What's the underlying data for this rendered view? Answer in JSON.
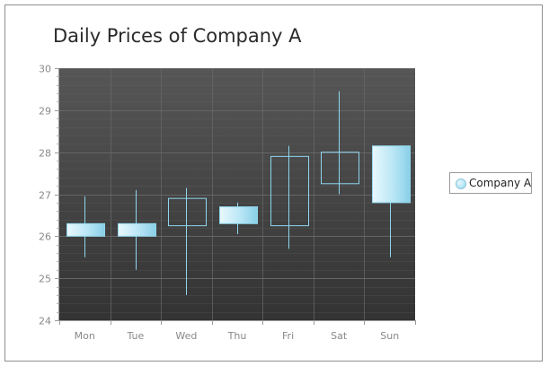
{
  "chart_data": {
    "type": "candlestick",
    "title": "Daily Prices of Company A",
    "categories": [
      "Mon",
      "Tue",
      "Wed",
      "Thu",
      "Fri",
      "Sat",
      "Sun"
    ],
    "series": [
      {
        "name": "Company A",
        "ohlc": [
          {
            "x": "Mon",
            "open": 26.3,
            "high": 26.95,
            "low": 25.5,
            "close": 26.0
          },
          {
            "x": "Tue",
            "open": 26.3,
            "high": 27.1,
            "low": 25.2,
            "close": 26.0
          },
          {
            "x": "Wed",
            "open": 26.25,
            "high": 27.15,
            "low": 24.6,
            "close": 26.9
          },
          {
            "x": "Thu",
            "open": 26.7,
            "high": 26.8,
            "low": 26.05,
            "close": 26.3
          },
          {
            "x": "Fri",
            "open": 26.25,
            "high": 28.15,
            "low": 25.7,
            "close": 27.9
          },
          {
            "x": "Sat",
            "open": 27.25,
            "high": 29.45,
            "low": 27.0,
            "close": 28.0
          },
          {
            "x": "Sun",
            "open": 28.15,
            "high": 28.15,
            "low": 25.5,
            "close": 26.8
          }
        ]
      }
    ],
    "y_ticks": [
      "24",
      "25",
      "26",
      "27",
      "28",
      "29",
      "30"
    ],
    "ylim": [
      24,
      30
    ],
    "grid": true,
    "legend_position": "right",
    "colors": {
      "plot_bg_top": "#565656",
      "plot_bg_bottom": "#333333",
      "candle_fill_light": "#e9f8fd",
      "candle_fill_mid": "#b9e6f5",
      "candle_fill_dark": "#89cfe7",
      "candle_stroke": "#8fd6ee",
      "grid_line": "#6a6a6a",
      "axis_text": "#888888"
    }
  }
}
